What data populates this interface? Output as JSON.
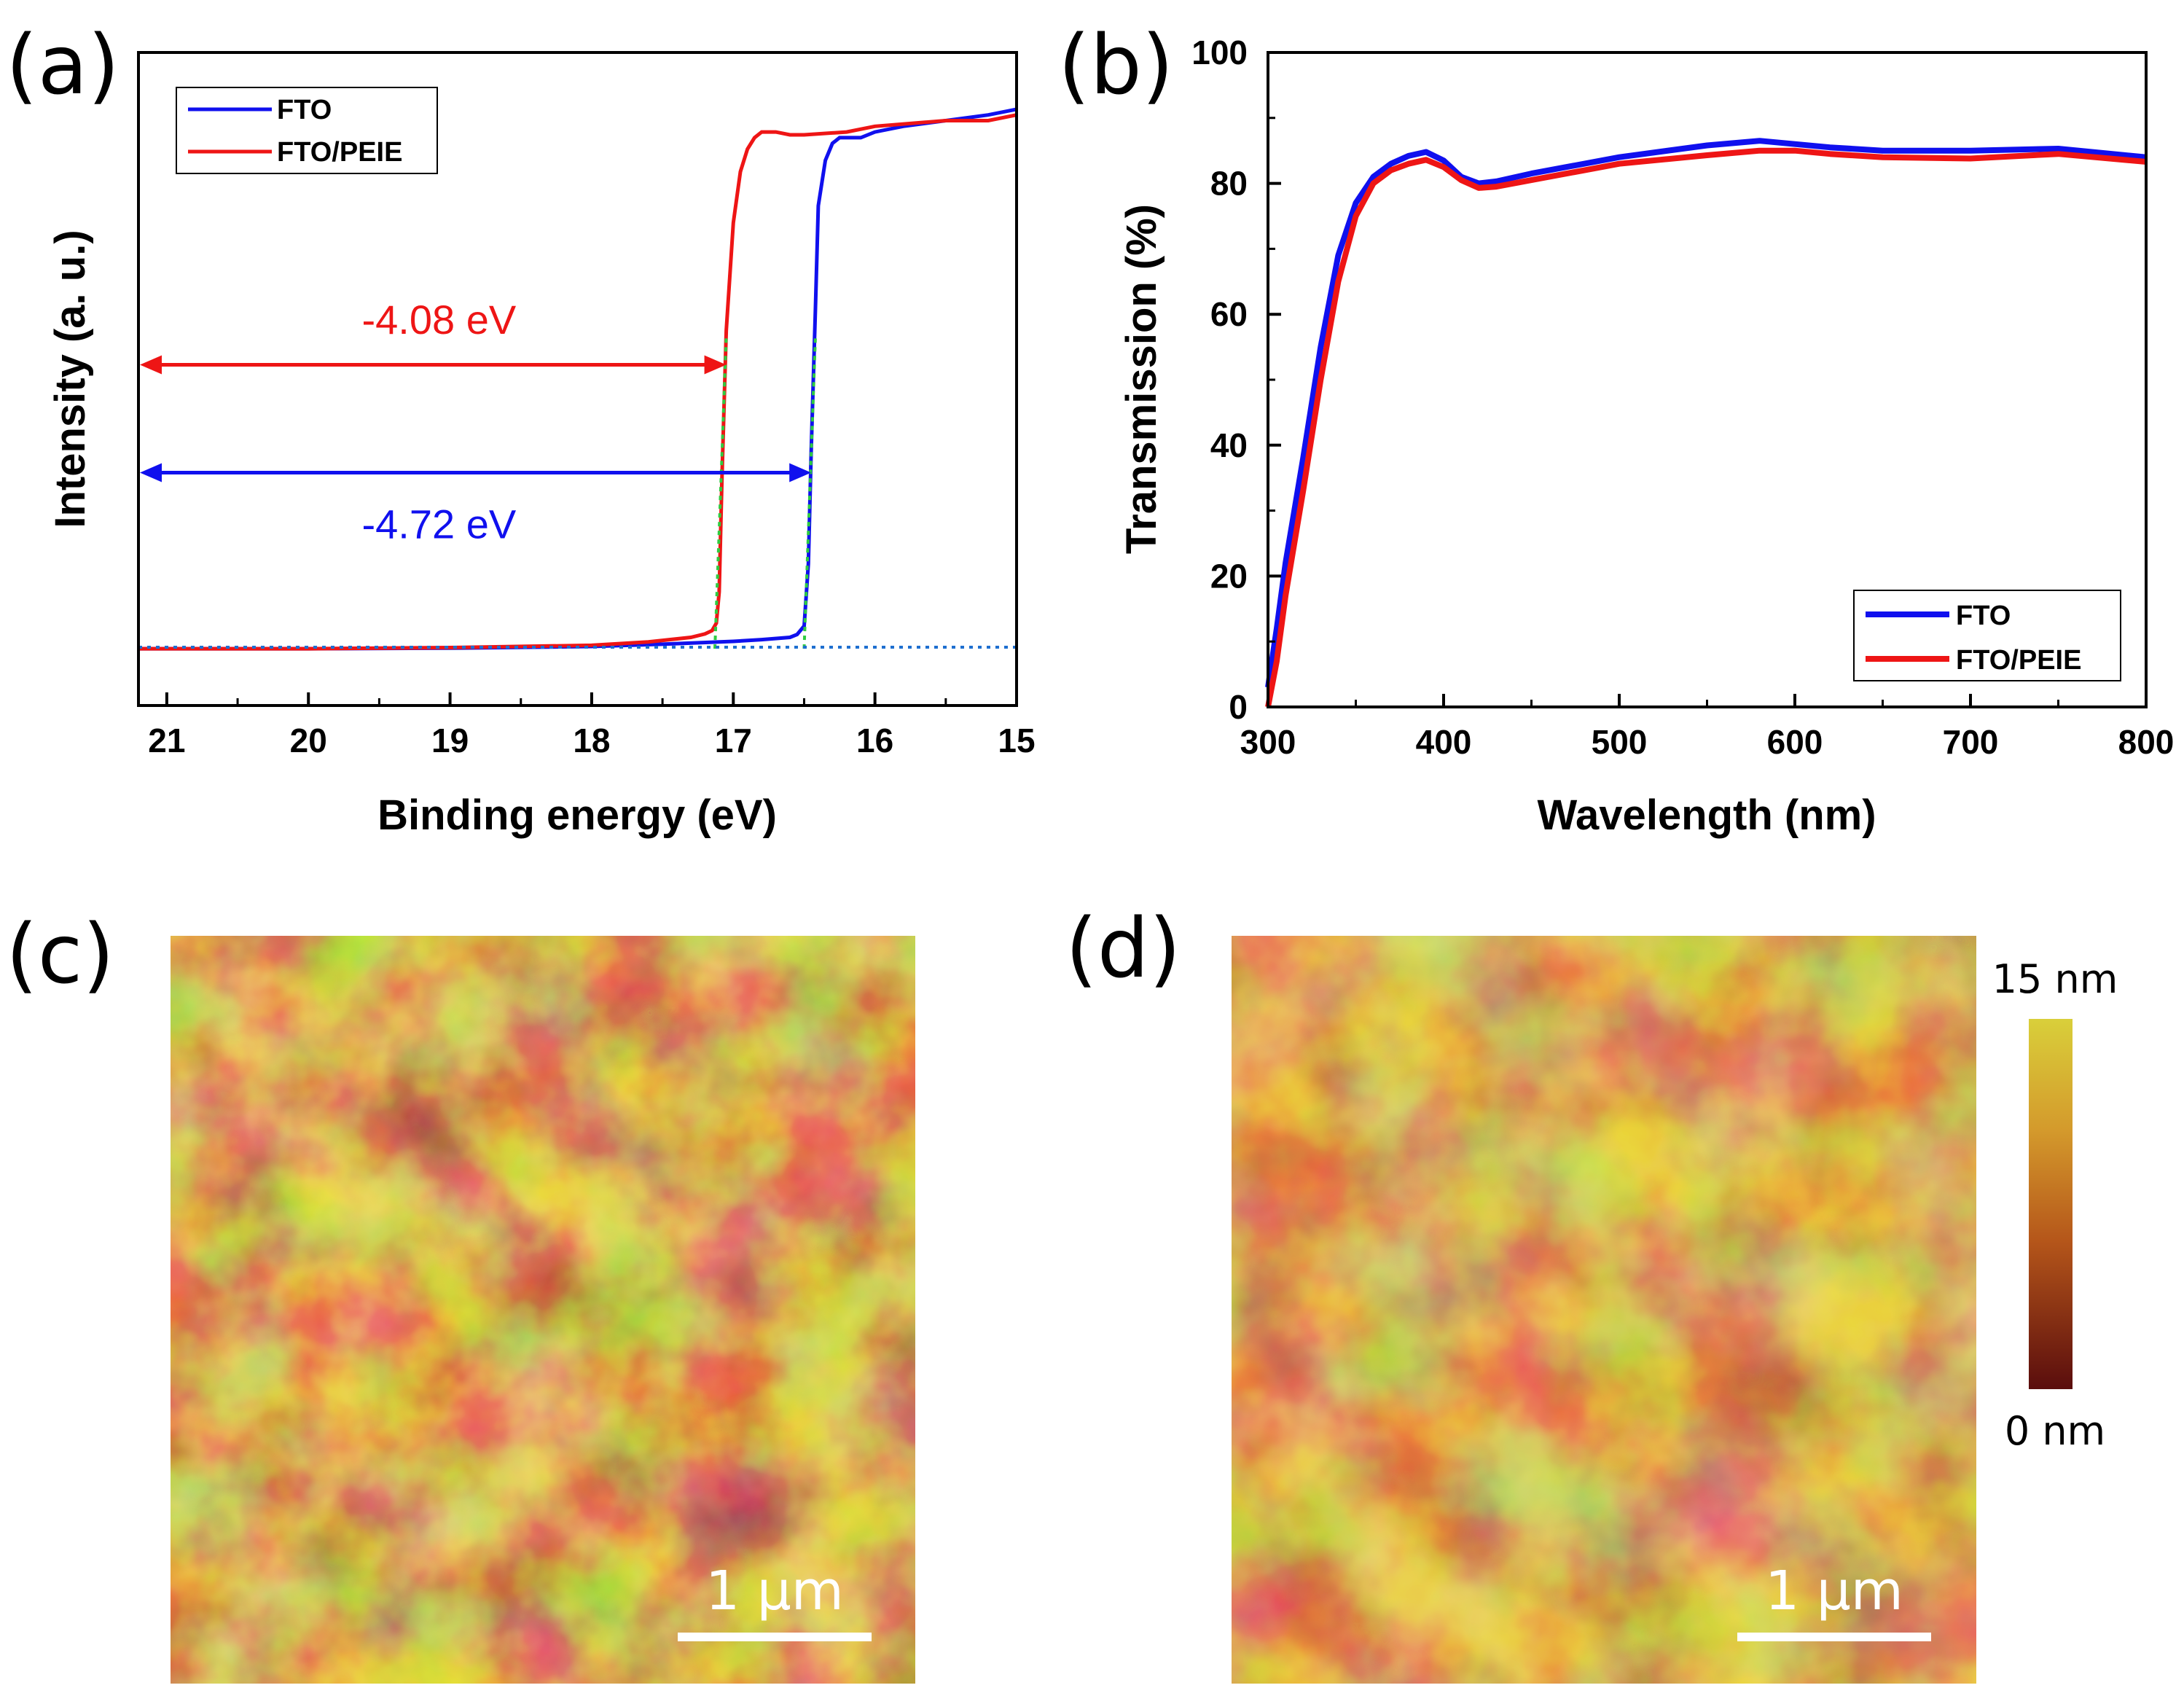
{
  "panels": {
    "a": "(a)",
    "b": "(b)",
    "c": "(c)",
    "d": "(d)"
  },
  "colors": {
    "fto": "#1010ee",
    "peie": "#ee1515",
    "fit": "#2ecc40"
  },
  "chart_data": [
    {
      "type": "line",
      "panel": "(a)",
      "title": "",
      "xlabel": "Binding energy (eV)",
      "ylabel": "Intensity (a. u.)",
      "xlim": [
        21.2,
        15
      ],
      "ylim": [
        -0.1,
        1.05
      ],
      "xticks": [
        21,
        20,
        19,
        18,
        17,
        16,
        15
      ],
      "legend_position": "top-left",
      "series": [
        {
          "name": "FTO",
          "color": "#1010ee",
          "x": [
            21.2,
            20,
            19,
            18,
            17.5,
            17,
            16.8,
            16.6,
            16.55,
            16.5,
            16.47,
            16.45,
            16.42,
            16.4,
            16.35,
            16.3,
            16.25,
            16.2,
            16.1,
            16.0,
            15.8,
            15.5,
            15.2,
            15.0
          ],
          "y": [
            0,
            0,
            0.001,
            0.004,
            0.008,
            0.013,
            0.016,
            0.02,
            0.025,
            0.04,
            0.15,
            0.35,
            0.6,
            0.78,
            0.86,
            0.89,
            0.9,
            0.9,
            0.9,
            0.91,
            0.92,
            0.93,
            0.94,
            0.95
          ]
        },
        {
          "name": "FTO/PEIE",
          "color": "#ee1515",
          "x": [
            21.2,
            20,
            19,
            18,
            17.6,
            17.3,
            17.2,
            17.15,
            17.12,
            17.1,
            17.08,
            17.05,
            17.0,
            16.95,
            16.9,
            16.85,
            16.8,
            16.7,
            16.6,
            16.5,
            16.2,
            16.0,
            15.5,
            15.2,
            15.0
          ],
          "y": [
            0,
            0,
            0.002,
            0.006,
            0.012,
            0.02,
            0.026,
            0.032,
            0.045,
            0.1,
            0.3,
            0.56,
            0.75,
            0.84,
            0.88,
            0.9,
            0.91,
            0.91,
            0.905,
            0.905,
            0.91,
            0.92,
            0.93,
            0.93,
            0.94
          ]
        }
      ],
      "fit_lines": [
        {
          "x1": 16.5,
          "y1": 0.0,
          "x2": 16.42,
          "y2": 0.55
        },
        {
          "x1": 17.13,
          "y1": 0.0,
          "x2": 17.05,
          "y2": 0.55
        }
      ],
      "annotations": [
        {
          "text": "-4.08 eV",
          "color": "#ee1515",
          "arrow_x": [
            21.2,
            17.05
          ],
          "arrow_y": 0.5,
          "text_x": 20.2,
          "text_y": 0.58
        },
        {
          "text": "-4.72 eV",
          "color": "#1010ee",
          "arrow_x": [
            21.2,
            16.45
          ],
          "arrow_y": 0.31,
          "text_x": 20.2,
          "text_y": 0.22
        }
      ]
    },
    {
      "type": "line",
      "panel": "(b)",
      "title": "",
      "xlabel": "Wavelength (nm)",
      "ylabel": "Transmission (%)",
      "xlim": [
        300,
        800
      ],
      "ylim": [
        0,
        100
      ],
      "xticks": [
        300,
        400,
        500,
        600,
        700,
        800
      ],
      "yticks": [
        0,
        20,
        40,
        60,
        80,
        100
      ],
      "legend_position": "bottom-right",
      "series": [
        {
          "name": "FTO",
          "color": "#1010ee",
          "x": [
            300,
            305,
            310,
            320,
            330,
            340,
            350,
            360,
            370,
            380,
            390,
            400,
            410,
            420,
            430,
            450,
            500,
            550,
            580,
            600,
            620,
            650,
            700,
            750,
            800
          ],
          "y": [
            3,
            12,
            22,
            38,
            55,
            69,
            77,
            81,
            83,
            84.2,
            84.8,
            83.5,
            81,
            80,
            80.3,
            81.5,
            84,
            85.8,
            86.5,
            86,
            85.5,
            85,
            85,
            85.3,
            84
          ]
        },
        {
          "name": "FTO/PEIE",
          "color": "#ee1515",
          "x": [
            300,
            305,
            310,
            320,
            330,
            340,
            350,
            360,
            370,
            380,
            390,
            400,
            410,
            420,
            430,
            450,
            500,
            550,
            580,
            600,
            620,
            650,
            700,
            750,
            800
          ],
          "y": [
            0,
            7,
            17,
            33,
            50,
            65,
            75,
            80,
            82,
            83,
            83.6,
            82.5,
            80.5,
            79.3,
            79.5,
            80.5,
            83,
            84.3,
            85,
            85,
            84.5,
            84,
            83.8,
            84.5,
            83.3
          ]
        }
      ]
    }
  ],
  "afm": {
    "c_scalebar": "1 μm",
    "d_scalebar": "1 μm",
    "colorbar_max": "15 nm",
    "colorbar_min": "0 nm"
  }
}
